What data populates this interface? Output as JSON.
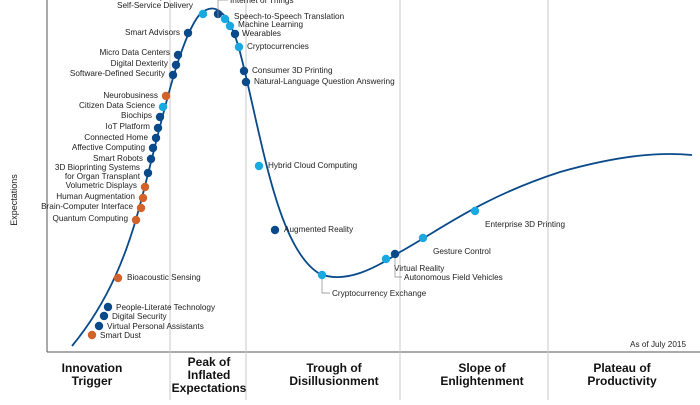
{
  "chart_data": {
    "type": "line",
    "ylabel": "Expectations",
    "note": "As of July 2015",
    "phases": [
      [
        "Innovation",
        "Trigger"
      ],
      [
        "Peak of",
        "Inflated",
        "Expectations"
      ],
      [
        "Trough of",
        "Disillusionment"
      ],
      [
        "Slope of",
        "Enlightenment"
      ],
      [
        "Plateau of",
        "Productivity"
      ]
    ],
    "colors": {
      "curve": "#0a4a8a",
      "dark": "#0a4a8a",
      "light": "#17a9e1",
      "orange": "#d2612a"
    },
    "technologies": [
      {
        "name": "Advanced Analytics with Self-Service Delivery",
        "color": "light"
      },
      {
        "name": "Internet of Things",
        "color": "dark"
      },
      {
        "name": "Speech-to-Speech Translation",
        "color": "light"
      },
      {
        "name": "Machine Learning",
        "color": "light"
      },
      {
        "name": "Wearables",
        "color": "dark"
      },
      {
        "name": "Cryptocurrencies",
        "color": "light"
      },
      {
        "name": "Smart Advisors",
        "color": "dark"
      },
      {
        "name": "Micro Data Centers",
        "color": "dark"
      },
      {
        "name": "Digital Dexterity",
        "color": "dark"
      },
      {
        "name": "Software-Defined Security",
        "color": "dark"
      },
      {
        "name": "Consumer 3D Printing",
        "color": "dark"
      },
      {
        "name": "Natural-Language Question Answering",
        "color": "dark"
      },
      {
        "name": "Neurobusiness",
        "color": "orange"
      },
      {
        "name": "Citizen Data Science",
        "color": "light"
      },
      {
        "name": "Biochips",
        "color": "dark"
      },
      {
        "name": "IoT Platform",
        "color": "dark"
      },
      {
        "name": "Connected Home",
        "color": "dark"
      },
      {
        "name": "Affective Computing",
        "color": "dark"
      },
      {
        "name": "Smart Robots",
        "color": "dark"
      },
      {
        "name": "Hybrid Cloud Computing",
        "color": "light"
      },
      {
        "name": "3D Bioprinting Systems for Organ Transplant",
        "color": "dark"
      },
      {
        "name": "Volumetric Displays",
        "color": "orange"
      },
      {
        "name": "Human Augmentation",
        "color": "orange"
      },
      {
        "name": "Brain-Computer Interface",
        "color": "orange"
      },
      {
        "name": "Enterprise 3D Printing",
        "color": "light"
      },
      {
        "name": "Quantum Computing",
        "color": "orange"
      },
      {
        "name": "Augmented Reality",
        "color": "dark"
      },
      {
        "name": "Gesture Control",
        "color": "light"
      },
      {
        "name": "Virtual Reality",
        "color": "light"
      },
      {
        "name": "Autonomous Field Vehicles",
        "color": "dark"
      },
      {
        "name": "Bioacoustic Sensing",
        "color": "orange"
      },
      {
        "name": "Cryptocurrency Exchange",
        "color": "light"
      },
      {
        "name": "People-Literate Technology",
        "color": "dark"
      },
      {
        "name": "Digital Security",
        "color": "dark"
      },
      {
        "name": "Virtual Personal Assistants",
        "color": "dark"
      },
      {
        "name": "Smart Dust",
        "color": "orange"
      }
    ]
  }
}
